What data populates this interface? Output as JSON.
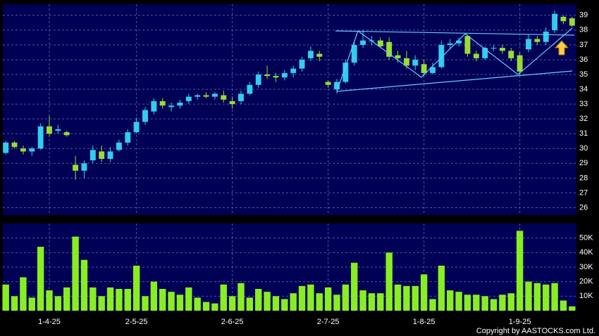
{
  "chart_data": [
    {
      "type": "candlestick",
      "up_color": "#33ccee",
      "down_color": "#99dd33",
      "open": [
        29.7,
        30.4,
        30.0,
        29.8,
        30.0,
        31.5,
        31.2,
        31.1,
        28.9,
        28.5,
        29.2,
        29.8,
        29.3,
        29.9,
        30.4,
        31.1,
        31.8,
        32.5,
        33.2,
        32.8,
        32.9,
        33.2,
        33.5,
        33.6,
        33.5,
        33.6,
        33.2,
        33.2,
        33.7,
        34.3,
        35.0,
        34.9,
        34.8,
        35.1,
        35.4,
        36.1,
        36.4,
        34.5,
        34.0,
        34.5,
        35.8,
        37.0,
        37.3,
        37.3,
        37.2,
        36.3,
        36.1,
        35.6,
        35.7,
        35.1,
        35.5,
        37.0,
        37.1,
        37.6,
        36.4,
        36.1,
        36.8,
        36.8,
        36.6,
        36.3,
        36.7,
        37.4,
        37.2,
        38.0,
        38.9,
        38.8
      ],
      "high": [
        30.5,
        30.5,
        30.2,
        30.1,
        31.7,
        32.2,
        31.6,
        31.2,
        29.5,
        29.2,
        30.2,
        30.2,
        30.1,
        30.6,
        31.3,
        32.1,
        32.8,
        33.4,
        33.4,
        33.1,
        33.3,
        33.7,
        33.7,
        33.8,
        33.8,
        33.9,
        33.5,
        33.9,
        34.5,
        35.2,
        35.6,
        35.1,
        35.3,
        35.6,
        36.2,
        36.9,
        36.6,
        34.6,
        34.7,
        36.0,
        37.3,
        38.0,
        37.6,
        37.5,
        37.5,
        36.6,
        36.6,
        36.3,
        36.0,
        35.8,
        37.3,
        37.4,
        37.5,
        37.7,
        36.6,
        36.9,
        37.0,
        37.0,
        36.8,
        36.5,
        37.7,
        37.6,
        38.2,
        39.3,
        39.0,
        38.9
      ],
      "low": [
        29.6,
        30.0,
        29.6,
        29.5,
        29.9,
        30.8,
        31.0,
        30.8,
        27.9,
        28.0,
        29.0,
        29.1,
        29.1,
        29.8,
        30.2,
        31.0,
        31.6,
        32.3,
        32.7,
        32.5,
        32.7,
        33.0,
        33.3,
        33.4,
        33.3,
        33.1,
        32.7,
        33.0,
        33.6,
        34.1,
        34.7,
        34.5,
        34.6,
        34.8,
        35.2,
        35.9,
        35.9,
        34.1,
        33.7,
        34.4,
        35.6,
        36.8,
        37.0,
        36.8,
        36.0,
        35.8,
        35.4,
        35.3,
        34.9,
        35.0,
        35.4,
        36.7,
        36.9,
        36.2,
        35.9,
        36.0,
        36.6,
        36.4,
        35.9,
        35.0,
        36.5,
        37.0,
        37.0,
        37.8,
        38.4,
        38.2
      ],
      "close": [
        30.4,
        30.1,
        29.8,
        30.0,
        31.5,
        31.0,
        31.3,
        30.9,
        28.5,
        29.0,
        29.9,
        29.3,
        29.8,
        30.4,
        31.1,
        31.8,
        32.6,
        33.2,
        32.9,
        32.9,
        33.1,
        33.5,
        33.6,
        33.5,
        33.7,
        33.3,
        33.0,
        33.7,
        34.3,
        35.0,
        34.9,
        34.8,
        35.1,
        35.4,
        36.0,
        36.6,
        36.2,
        34.3,
        34.5,
        35.8,
        37.0,
        37.3,
        37.3,
        36.9,
        36.2,
        36.1,
        35.6,
        36.0,
        35.1,
        35.5,
        37.0,
        37.1,
        37.3,
        36.4,
        36.1,
        36.8,
        36.8,
        36.6,
        36.1,
        35.2,
        37.4,
        37.2,
        37.9,
        39.1,
        38.6,
        38.3
      ],
      "ylim": [
        25.5,
        39.75
      ],
      "yticks": [
        26,
        27,
        28,
        29,
        30,
        31,
        32,
        33,
        34,
        35,
        36,
        37,
        38,
        39
      ],
      "grid": true
    },
    {
      "type": "bar",
      "color": "#88ee22",
      "categories": [
        null,
        null,
        null,
        null,
        null,
        "1-4-25",
        null,
        null,
        null,
        null,
        null,
        null,
        null,
        null,
        null,
        "2-5-25",
        null,
        null,
        null,
        null,
        null,
        null,
        null,
        null,
        null,
        null,
        "2-6-25",
        null,
        null,
        null,
        null,
        null,
        null,
        null,
        null,
        null,
        null,
        "2-7-25",
        null,
        null,
        null,
        null,
        null,
        null,
        null,
        null,
        null,
        null,
        "1-8-25",
        null,
        null,
        null,
        null,
        null,
        null,
        null,
        null,
        null,
        null,
        "1-9-25",
        null,
        null,
        null,
        null,
        null,
        null
      ],
      "values": [
        18000,
        10000,
        23000,
        9000,
        44000,
        14000,
        10000,
        16000,
        51000,
        35000,
        16000,
        10000,
        16000,
        15000,
        15000,
        31000,
        10000,
        20000,
        15000,
        13000,
        11000,
        16000,
        9000,
        6000,
        5000,
        18000,
        10000,
        19000,
        9000,
        15000,
        13000,
        10000,
        8000,
        12000,
        17000,
        18000,
        12000,
        16000,
        11000,
        18000,
        33000,
        14000,
        12000,
        12000,
        40000,
        18000,
        17000,
        17000,
        25000,
        8000,
        31000,
        14000,
        13000,
        11000,
        11000,
        10000,
        8000,
        11000,
        12000,
        55000,
        20000,
        19000,
        18000,
        19000,
        7000,
        3000
      ],
      "ylim": [
        0,
        60000
      ],
      "yticks": [
        {
          "value": 10000,
          "label": "10K"
        },
        {
          "value": 20000,
          "label": "20K"
        },
        {
          "value": 30000,
          "label": "30K"
        },
        {
          "value": 40000,
          "label": "40K"
        },
        {
          "value": 50000,
          "label": "50K"
        }
      ],
      "grid": true
    }
  ],
  "copyright": "Copyright by AASTOCKS.com Ltd."
}
